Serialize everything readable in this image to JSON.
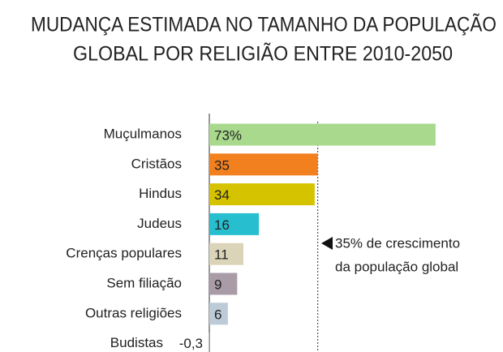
{
  "chart_data": {
    "type": "hbar",
    "title": [
      "MUDANÇA ESTIMADA NO TAMANHO DA POPULAÇÃO",
      "GLOBAL POR RELIGIÃO ENTRE 2010-2050"
    ],
    "categories": [
      "Muçulmanos",
      "Cristãos",
      "Hindus",
      "Judeus",
      "Crenças populares",
      "Sem filiação",
      "Outras religiões",
      "Budistas"
    ],
    "values": [
      73,
      35,
      34,
      16,
      11,
      9,
      6,
      -0.3
    ],
    "value_labels": [
      "73%",
      "35",
      "34",
      "16",
      "11",
      "9",
      "6",
      "-0,3"
    ],
    "colors": [
      "#a8d98c",
      "#f2801f",
      "#d6c300",
      "#27bfd0",
      "#dbd4b9",
      "#a99ca7",
      "#bccbd7",
      "#c4c4c4"
    ],
    "reference_value": 35,
    "annotation": [
      "35% de crescimento",
      "da população global"
    ]
  }
}
